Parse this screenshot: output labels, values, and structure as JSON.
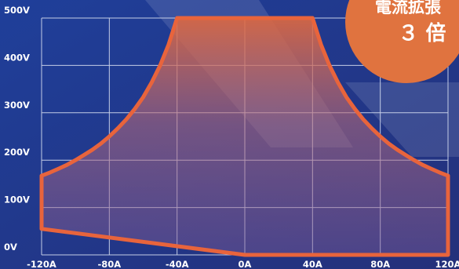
{
  "chart_data": {
    "type": "area",
    "title": "",
    "xlabel": "",
    "ylabel": "",
    "x_ticks": [
      "-120A",
      "-80A",
      "-40A",
      "0A",
      "40A",
      "80A",
      "120A"
    ],
    "y_ticks": [
      "0V",
      "100V",
      "200V",
      "300V",
      "400V",
      "500V"
    ],
    "xlim": [
      -120,
      120
    ],
    "ylim": [
      0,
      500
    ],
    "grid": true,
    "colors": {
      "outline": "#e8643c",
      "grid": "#c4cde6",
      "background": "#233a86",
      "badge": "#e0733f"
    },
    "series": [
      {
        "x": [
          -120,
          -120,
          -115,
          -110,
          -105,
          -100,
          -95,
          -90,
          -85,
          -80,
          -75,
          -70,
          -65,
          -60,
          -55,
          -50,
          -45,
          -40,
          40,
          45,
          50,
          55,
          60,
          65,
          70,
          75,
          80,
          85,
          90,
          95,
          100,
          105,
          110,
          115,
          120,
          120,
          0,
          -120
        ],
        "y": [
          55,
          167,
          174,
          182,
          190,
          200,
          211,
          222,
          235,
          250,
          267,
          286,
          308,
          333,
          364,
          400,
          444,
          500,
          500,
          444,
          400,
          364,
          333,
          308,
          286,
          267,
          250,
          235,
          222,
          211,
          200,
          190,
          182,
          174,
          167,
          0,
          0,
          55
        ]
      }
    ]
  },
  "badge": {
    "line1": "電流拡張",
    "line2": "３ 倍"
  }
}
